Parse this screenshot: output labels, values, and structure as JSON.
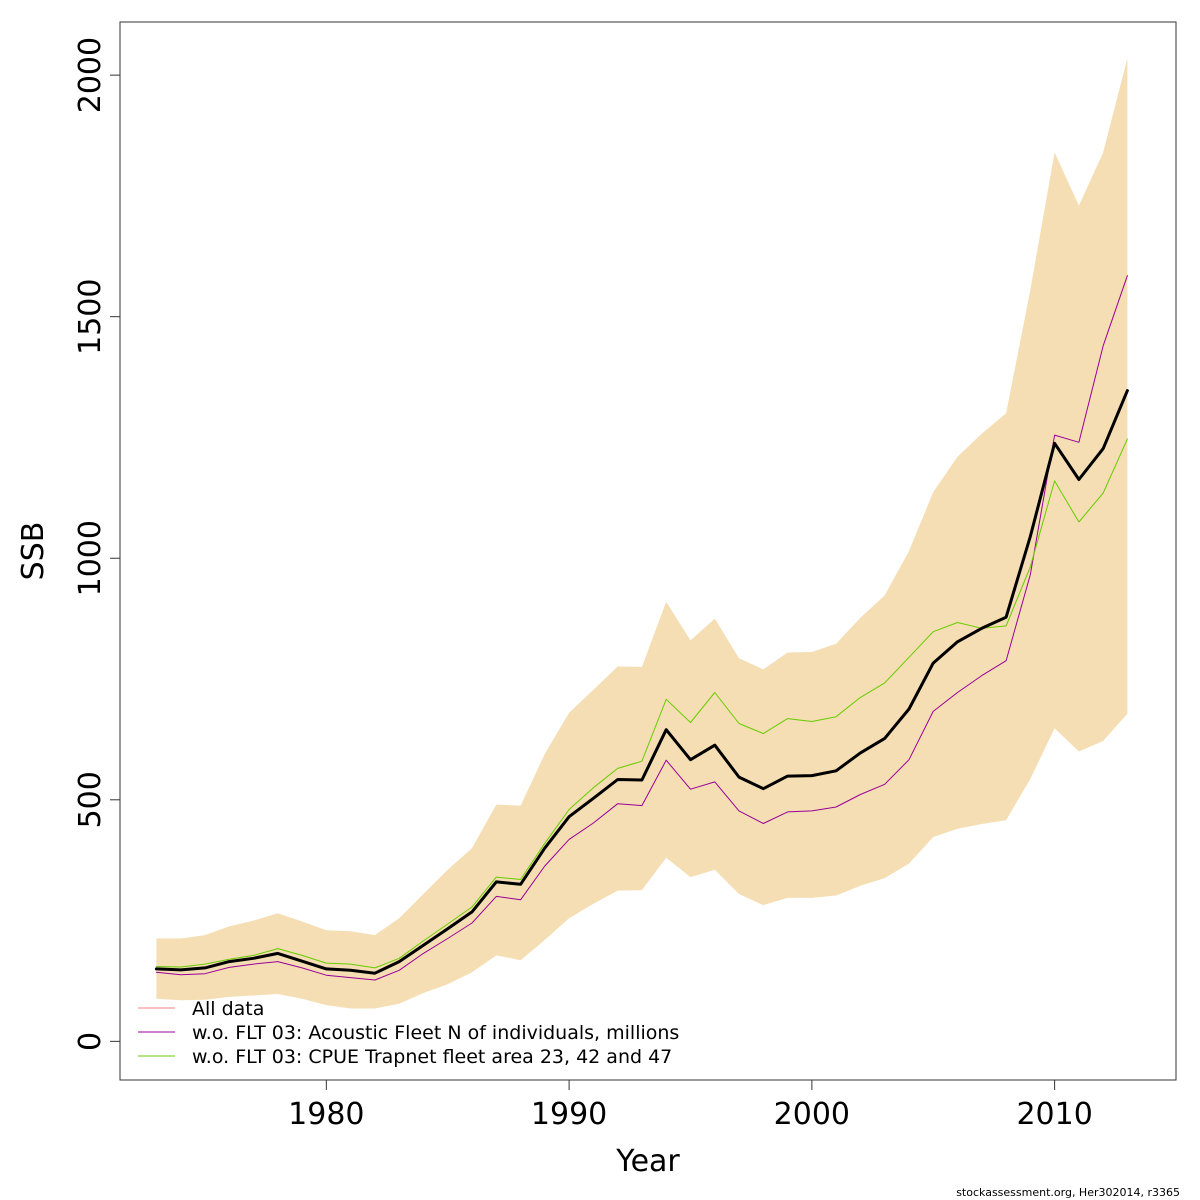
{
  "chart_data": {
    "type": "line",
    "xlabel": "Year",
    "ylabel": "SSB",
    "xlim": [
      1971.5,
      2015
    ],
    "ylim": [
      -80,
      2110
    ],
    "xticks": [
      1980,
      1990,
      2000,
      2010
    ],
    "yticks": [
      0,
      500,
      1000,
      1500,
      2000
    ],
    "x": [
      1973,
      1974,
      1975,
      1976,
      1977,
      1978,
      1979,
      1980,
      1981,
      1982,
      1983,
      1984,
      1985,
      1986,
      1987,
      1988,
      1989,
      1990,
      1991,
      1992,
      1993,
      1994,
      1995,
      1996,
      1997,
      1998,
      1999,
      2000,
      2001,
      2002,
      2003,
      2004,
      2005,
      2006,
      2007,
      2008,
      2009,
      2010,
      2011,
      2012,
      2013
    ],
    "band": {
      "color": "#F5DEB3",
      "upper": [
        213,
        213,
        220,
        238,
        250,
        265,
        248,
        230,
        228,
        220,
        255,
        305,
        355,
        400,
        490,
        488,
        595,
        680,
        728,
        776,
        775,
        910,
        830,
        875,
        793,
        770,
        805,
        806,
        823,
        877,
        923,
        1015,
        1137,
        1210,
        1258,
        1300,
        1555,
        1840,
        1730,
        1840,
        2035
      ],
      "lower": [
        88,
        85,
        86,
        92,
        95,
        98,
        88,
        75,
        68,
        68,
        78,
        100,
        118,
        143,
        178,
        168,
        210,
        255,
        285,
        312,
        313,
        380,
        340,
        355,
        305,
        282,
        297,
        297,
        302,
        322,
        338,
        368,
        423,
        440,
        450,
        458,
        543,
        648,
        600,
        622,
        678
      ]
    },
    "series": [
      {
        "name": "All data",
        "color": "#000000",
        "width": 3,
        "values": [
          150,
          148,
          152,
          165,
          172,
          182,
          166,
          150,
          147,
          141,
          165,
          199,
          233,
          268,
          330,
          325,
          400,
          465,
          503,
          542,
          541,
          645,
          583,
          613,
          547,
          523,
          549,
          550,
          560,
          597,
          627,
          688,
          783,
          827,
          855,
          878,
          1045,
          1238,
          1163,
          1227,
          1347
        ]
      },
      {
        "name": "w.o. FLT 03: Acoustic Fleet   N of individuals, millions",
        "color": "#990099",
        "width": 1,
        "values": [
          143,
          138,
          140,
          153,
          160,
          165,
          152,
          137,
          132,
          127,
          147,
          182,
          213,
          245,
          300,
          293,
          363,
          418,
          452,
          492,
          488,
          582,
          522,
          537,
          477,
          451,
          475,
          477,
          485,
          511,
          532,
          583,
          683,
          722,
          757,
          788,
          966,
          1255,
          1240,
          1440,
          1585
        ]
      },
      {
        "name": "w.o. FLT 03: CPUE Trapnet fleet area 23, 42 and 47",
        "color": "#66CC00",
        "width": 1,
        "values": [
          155,
          154,
          160,
          170,
          178,
          192,
          178,
          162,
          160,
          152,
          172,
          208,
          243,
          278,
          340,
          335,
          410,
          480,
          525,
          565,
          580,
          708,
          660,
          722,
          658,
          637,
          668,
          662,
          672,
          712,
          742,
          795,
          848,
          867,
          855,
          860,
          982,
          1160,
          1075,
          1135,
          1247
        ]
      }
    ],
    "legend": {
      "position": "bottom-left",
      "entries": [
        {
          "label": "All data",
          "color": "#F08080"
        },
        {
          "label": "w.o. FLT 03: Acoustic Fleet   N of individuals, millions",
          "color": "#990099"
        },
        {
          "label": "w.o. FLT 03: CPUE Trapnet fleet area 23, 42 and 47",
          "color": "#66CC00"
        }
      ]
    }
  },
  "credit": "stockassessment.org, Her302014, r3365"
}
